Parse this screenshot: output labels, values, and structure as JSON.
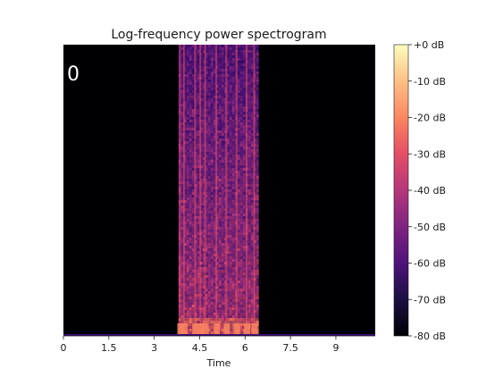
{
  "chart_data": {
    "type": "heatmap",
    "title": "Log-frequency power spectrogram",
    "xlabel": "Time",
    "ylabel": "",
    "xlim": [
      0,
      10.3
    ],
    "x_ticks": [
      0,
      1.5,
      3,
      4.5,
      6,
      7.5,
      9
    ],
    "x_tick_labels": [
      "0",
      "1.5",
      "3",
      "4.5",
      "6",
      "7.5",
      "9"
    ],
    "overlay_text": "0",
    "active_segment": {
      "start": 3.8,
      "end": 6.4
    },
    "onsets": [
      3.85,
      3.98,
      4.35,
      4.52,
      4.68,
      5.05,
      5.38,
      5.72,
      6.05,
      6.3
    ],
    "colorbar": {
      "label_ticks": [
        0,
        -10,
        -20,
        -30,
        -40,
        -50,
        -60,
        -70,
        -80
      ],
      "tick_labels": [
        "+0 dB",
        "-10 dB",
        "-20 dB",
        "-30 dB",
        "-40 dB",
        "-50 dB",
        "-60 dB",
        "-70 dB",
        "-80 dB"
      ],
      "range": [
        -80,
        0
      ],
      "colormap": "magma"
    },
    "colors": {
      "background": "#000004",
      "low": "#3b0f70",
      "mid": "#8c2981",
      "high": "#de4968",
      "peak": "#fcfdbf"
    }
  }
}
